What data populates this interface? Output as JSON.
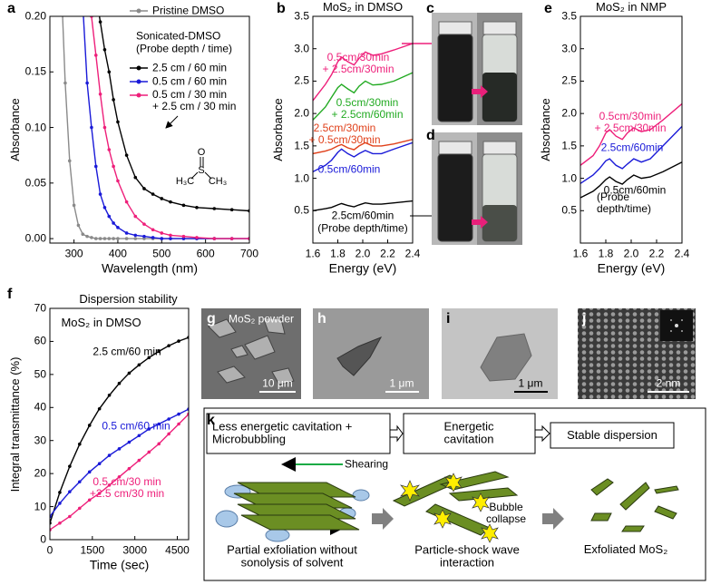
{
  "chart_data": [
    {
      "type": "line",
      "xlabel": "Wavelength (nm)",
      "ylabel": "Absorbance",
      "x": [
        270,
        280,
        290,
        300,
        310,
        320,
        330,
        340,
        350,
        360,
        370,
        380,
        390,
        400,
        420,
        440,
        460,
        480,
        500,
        520,
        550,
        580,
        620,
        660,
        700
      ],
      "xlim": [
        245,
        700
      ],
      "xticks": [
        300,
        400,
        500,
        600,
        700
      ],
      "ylim": [
        -0.004,
        0.2
      ],
      "yticks": [
        {
          "value": 0,
          "label": "0.00"
        },
        {
          "value": 0.05,
          "label": "0.05"
        },
        {
          "value": 0.1,
          "label": "0.10"
        },
        {
          "value": 0.15,
          "label": "0.15"
        },
        {
          "value": 0.2,
          "label": "0.20"
        }
      ],
      "markers": true,
      "legend_title": "Sonicated-DMSO",
      "legend_subtitle": "(Probe depth / time)",
      "annotations": [
        "H₃C",
        "S",
        "O",
        "CH₃"
      ],
      "series": [
        {
          "name": "Pristine DMSO",
          "color": "#8a8a8a",
          "values": [
            0.24,
            0.14,
            0.07,
            0.03,
            0.012,
            0.004,
            0.002,
            0.001,
            0,
            0,
            0,
            0,
            0,
            0,
            0,
            0,
            0,
            0,
            0,
            0,
            0,
            0,
            0,
            0,
            0
          ]
        },
        {
          "name": "2.5 cm / 60 min",
          "color": "#000000",
          "values": [
            null,
            null,
            null,
            null,
            null,
            null,
            null,
            null,
            0.22,
            0.195,
            0.17,
            0.15,
            0.125,
            0.105,
            0.075,
            0.055,
            0.045,
            0.04,
            0.036,
            0.033,
            0.03,
            0.028,
            0.027,
            0.026,
            0.025
          ]
        },
        {
          "name": "0.5 cm / 60 min",
          "color": "#1a1ad8",
          "values": [
            null,
            null,
            null,
            null,
            null,
            0.21,
            0.14,
            0.1,
            0.065,
            0.04,
            0.028,
            0.02,
            0.014,
            0.01,
            0.005,
            0.003,
            0.002,
            0.001,
            0,
            0,
            0,
            0,
            0,
            0,
            0
          ]
        },
        {
          "name": "0.5 cm / 30 min\n+ 2.5 cm / 30 min",
          "color": "#ee1f7a",
          "values": [
            null,
            null,
            null,
            null,
            null,
            null,
            0.25,
            0.2,
            0.165,
            0.13,
            0.1,
            0.08,
            0.065,
            0.052,
            0.033,
            0.02,
            0.013,
            0.008,
            0.005,
            0.003,
            0.002,
            0.001,
            0,
            0,
            0
          ]
        }
      ]
    },
    {
      "type": "line",
      "title": "MoS₂ in DMSO",
      "xlabel": "Energy (eV)",
      "ylabel": "Absorbance",
      "x": [
        1.6,
        1.7,
        1.75,
        1.8,
        1.83,
        1.88,
        1.93,
        1.97,
        2.02,
        2.08,
        2.15,
        2.25,
        2.4
      ],
      "xlim": [
        1.6,
        2.4
      ],
      "xticks": [
        1.6,
        1.8,
        {
          "value": 2,
          "label": "2.0"
        },
        2.2,
        2.4
      ],
      "ylim": [
        0,
        3.5
      ],
      "yticks": [
        0.5,
        {
          "value": 1,
          "label": "1.0"
        },
        1.5,
        {
          "value": 2,
          "label": "2.0"
        },
        2.5,
        {
          "value": 3,
          "label": "3.0"
        },
        3.5
      ],
      "annotation": "(Probe depth/time)",
      "series": [
        {
          "name": "0.5cm/30min\n+ 2.5cm/30min",
          "color": "#ee1f7a",
          "values": [
            2.2,
            2.45,
            2.6,
            2.8,
            2.87,
            2.8,
            2.75,
            2.85,
            2.95,
            2.9,
            2.92,
            2.98,
            3.08
          ]
        },
        {
          "name": "0.5cm/30min\n+ 2.5cm/60min",
          "color": "#22aa22",
          "values": [
            1.9,
            2.1,
            2.25,
            2.4,
            2.45,
            2.38,
            2.32,
            2.42,
            2.5,
            2.44,
            2.45,
            2.5,
            2.63
          ]
        },
        {
          "name": "2.5cm/30min\n+ 0.5cm/30min",
          "color": "#e0401a",
          "values": [
            1.38,
            1.42,
            1.45,
            1.5,
            1.52,
            1.47,
            1.44,
            1.5,
            1.55,
            1.5,
            1.5,
            1.53,
            1.6
          ]
        },
        {
          "name": "0.5cm/60min",
          "color": "#1a1ad8",
          "values": [
            1.1,
            1.2,
            1.28,
            1.4,
            1.45,
            1.38,
            1.33,
            1.38,
            1.43,
            1.38,
            1.38,
            1.45,
            1.55
          ]
        },
        {
          "name": "2.5cm/60min",
          "color": "#000000",
          "values": [
            0.5,
            0.53,
            0.55,
            0.59,
            0.61,
            0.58,
            0.56,
            0.59,
            0.62,
            0.6,
            0.6,
            0.62,
            0.65
          ]
        }
      ]
    },
    {
      "type": "line",
      "title": "MoS₂ in NMP",
      "xlabel": "Energy (eV)",
      "ylabel": "Absorbance",
      "x": [
        1.6,
        1.7,
        1.75,
        1.8,
        1.83,
        1.88,
        1.93,
        1.97,
        2.02,
        2.08,
        2.15,
        2.25,
        2.4
      ],
      "xlim": [
        1.6,
        2.4
      ],
      "xticks": [
        1.6,
        1.8,
        {
          "value": 2,
          "label": "2.0"
        },
        2.2,
        2.4
      ],
      "ylim": [
        0,
        3.5
      ],
      "yticks": [
        0.5,
        {
          "value": 1,
          "label": "1.0"
        },
        1.5,
        {
          "value": 2,
          "label": "2.0"
        },
        2.5,
        {
          "value": 3,
          "label": "3.0"
        },
        3.5
      ],
      "annotation": "(Probe depth/time)",
      "series": [
        {
          "name": "0.5cm/30min\n+ 2.5cm/30min",
          "color": "#ee1f7a",
          "values": [
            1.2,
            1.35,
            1.5,
            1.7,
            1.75,
            1.65,
            1.6,
            1.7,
            1.78,
            1.72,
            1.75,
            1.9,
            2.15
          ]
        },
        {
          "name": "2.5cm/60min",
          "color": "#1a1ad8",
          "values": [
            0.92,
            1.05,
            1.15,
            1.27,
            1.3,
            1.2,
            1.15,
            1.22,
            1.3,
            1.25,
            1.3,
            1.5,
            1.8
          ]
        },
        {
          "name": "0.5cm/60min",
          "color": "#000000",
          "values": [
            0.7,
            0.8,
            0.88,
            0.98,
            1.02,
            0.95,
            0.91,
            0.98,
            1.05,
            1.0,
            1.02,
            1.1,
            1.25
          ]
        }
      ]
    },
    {
      "type": "line",
      "title": "Dispersion stability",
      "subtitle": "MoS₂ in DMSO",
      "xlabel": "Time (sec)",
      "ylabel": "Integral transmittance (%)",
      "x": [
        0,
        350,
        700,
        1050,
        1400,
        1750,
        2100,
        2450,
        2800,
        3150,
        3500,
        3850,
        4200,
        4550,
        4900
      ],
      "xlim": [
        0,
        4900
      ],
      "xticks": [
        0,
        1500,
        3000,
        4500
      ],
      "ylim": [
        0,
        70
      ],
      "yticks": [
        0,
        10,
        20,
        30,
        40,
        50,
        60,
        70
      ],
      "markers": true,
      "series": [
        {
          "name": "2.5 cm/60 min",
          "color": "#000000",
          "values": [
            5,
            14.3,
            22.2,
            28.9,
            34.6,
            39.6,
            43.7,
            47.3,
            50.4,
            52.9,
            55.1,
            57.0,
            58.7,
            60.1,
            61.2
          ]
        },
        {
          "name": "0.5 cm/60 min",
          "color": "#1a1ad8",
          "values": [
            7,
            11,
            14.5,
            17.5,
            20.5,
            23,
            25.5,
            27.5,
            29.5,
            31.5,
            33.5,
            35,
            36.5,
            38,
            39.5
          ]
        },
        {
          "name": "0.5 cm/30 min\n+2.5 cm/30 min",
          "color": "#ee1f7a",
          "values": [
            3,
            5,
            7,
            9.5,
            12,
            14,
            16.5,
            19,
            21.5,
            24,
            26.5,
            29,
            32,
            35,
            38
          ]
        }
      ]
    }
  ],
  "panel_labels": [
    "a",
    "b",
    "c",
    "d",
    "e",
    "f",
    "g",
    "h",
    "i",
    "j",
    "k"
  ],
  "images": {
    "g_caption": "MoS₂ powder",
    "g_scale": "10 μm",
    "h_scale": "1 μm",
    "i_scale": "1 μm",
    "j_scale": "2 nm"
  },
  "diagram": {
    "stages": [
      "Less energetic cavitation +\nMicrobubbling",
      "Energetic\ncavitation",
      "Stable dispersion"
    ],
    "labels": [
      "Shearing",
      "Bubble\ncollapse"
    ],
    "captions": [
      "Partial exfoliation without\nsonolysis of solvent",
      "Particle-shock wave\ninteraction",
      "Exfoliated MoS₂"
    ]
  }
}
